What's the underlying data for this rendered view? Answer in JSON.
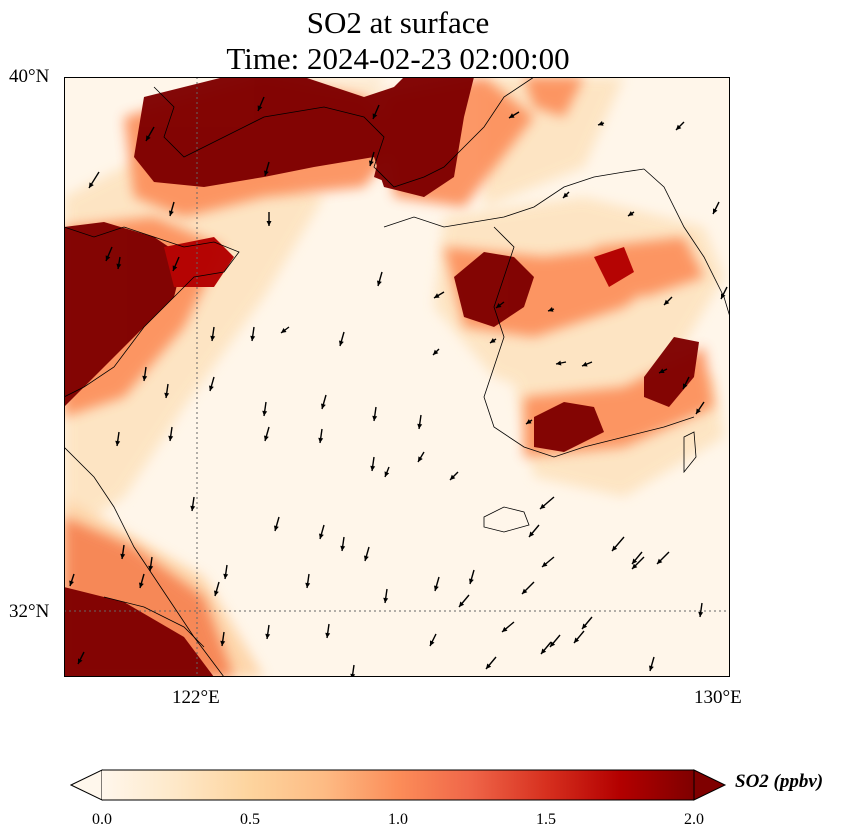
{
  "title": {
    "line1": "SO2 at surface",
    "line2": "Time: 2024-02-23 02:00:00"
  },
  "map": {
    "lon_range": [
      119,
      130
    ],
    "lat_range": [
      31,
      40
    ],
    "lat_labels": [
      "40°N",
      "32°N"
    ],
    "lon_labels": [
      "122°E",
      "130°E"
    ],
    "gridlines": {
      "lon": 122,
      "lat": 32,
      "style": "dotted"
    },
    "features": [
      "coastline",
      "wind-vectors",
      "so2-concentration-field"
    ],
    "high_so2_regions": [
      "Bohai Bay / northern China coast",
      "Shandong peninsula",
      "Pyongyang / northwestern Korea",
      "Southwestern Korea coast",
      "Southeastern Korea coast",
      "Jiangsu / Yangtze River delta"
    ],
    "wind_direction": "predominantly northerly / northwesterly"
  },
  "colorbar": {
    "colormap": "OrRd",
    "label": "SO2 (ppbv)",
    "ticks": [
      "0.0",
      "0.5",
      "1.0",
      "1.5",
      "2.0"
    ],
    "min": 0,
    "max": 2,
    "extend": "both",
    "colors": [
      "#fff7ec",
      "#fee8c8",
      "#fdd49e",
      "#fdbb84",
      "#fc8d59",
      "#ef6548",
      "#d7301f",
      "#b30000",
      "#7f0000"
    ]
  }
}
